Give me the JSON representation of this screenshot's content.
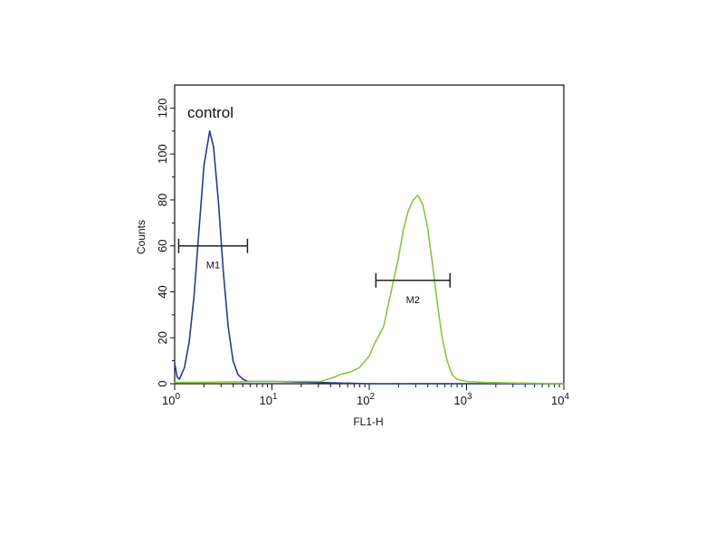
{
  "chart_data": {
    "type": "line",
    "title": "",
    "annotation": "control",
    "xlabel": "FL1-H",
    "ylabel": "Counts",
    "xscale": "log",
    "xlim": [
      1,
      10000
    ],
    "ylim": [
      0,
      130
    ],
    "x_ticks": [
      {
        "value": 1,
        "base": "10",
        "exp": "0"
      },
      {
        "value": 10,
        "base": "10",
        "exp": "1"
      },
      {
        "value": 100,
        "base": "10",
        "exp": "2"
      },
      {
        "value": 1000,
        "base": "10",
        "exp": "3"
      },
      {
        "value": 10000,
        "base": "10",
        "exp": "4"
      }
    ],
    "y_ticks": [
      "0",
      "20",
      "40",
      "60",
      "80",
      "100",
      "120"
    ],
    "grid": false,
    "series": [
      {
        "color": "#2b3a8c",
        "points": [
          [
            1.0,
            9
          ],
          [
            1.06,
            3
          ],
          [
            1.12,
            2
          ],
          [
            1.26,
            7
          ],
          [
            1.41,
            18
          ],
          [
            1.58,
            38
          ],
          [
            1.78,
            67
          ],
          [
            2.0,
            95
          ],
          [
            2.29,
            110
          ],
          [
            2.51,
            103
          ],
          [
            2.82,
            79
          ],
          [
            3.16,
            49
          ],
          [
            3.55,
            25
          ],
          [
            3.98,
            10
          ],
          [
            4.47,
            4
          ],
          [
            5.01,
            2
          ],
          [
            5.62,
            1
          ],
          [
            6.31,
            1
          ],
          [
            7.94,
            1
          ],
          [
            10,
            1
          ],
          [
            31.6,
            0.5
          ],
          [
            100,
            0
          ],
          [
            1000,
            0
          ],
          [
            10000,
            0
          ]
        ]
      },
      {
        "color": "#8cc63f",
        "points": [
          [
            1,
            0.5
          ],
          [
            10,
            1
          ],
          [
            31.6,
            1
          ],
          [
            44.7,
            3
          ],
          [
            50.1,
            4
          ],
          [
            63.1,
            5
          ],
          [
            79.4,
            7
          ],
          [
            100,
            12
          ],
          [
            112,
            17
          ],
          [
            126,
            21
          ],
          [
            141,
            25
          ],
          [
            158,
            35
          ],
          [
            178,
            45
          ],
          [
            200,
            55
          ],
          [
            224,
            67
          ],
          [
            251,
            75
          ],
          [
            282,
            80
          ],
          [
            316,
            82
          ],
          [
            355,
            78
          ],
          [
            398,
            68
          ],
          [
            447,
            52
          ],
          [
            501,
            35
          ],
          [
            562,
            20
          ],
          [
            631,
            10
          ],
          [
            708,
            4
          ],
          [
            794,
            2
          ],
          [
            1000,
            1
          ],
          [
            1585,
            0.5
          ],
          [
            10000,
            0
          ]
        ]
      }
    ],
    "markers": [
      {
        "label": "M1",
        "x_start": 1.1,
        "x_end": 5.6,
        "y": 60
      },
      {
        "label": "M2",
        "x_start": 117,
        "x_end": 676,
        "y": 45
      }
    ]
  }
}
